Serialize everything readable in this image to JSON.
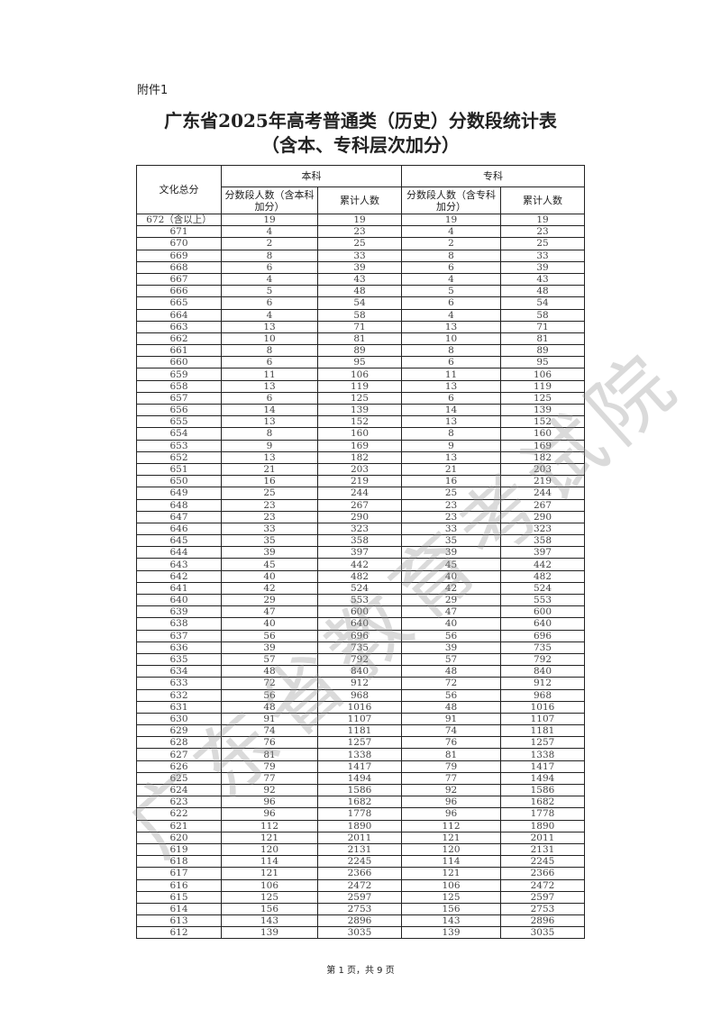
{
  "attachment_label": "附件1",
  "title_line1": "广东省2025年高考普通类（历史）分数段统计表",
  "title_line2": "（含本、专科层次加分）",
  "watermark": "广东省教育考试院",
  "table": {
    "col_score": "文化总分",
    "group_bk": "本科",
    "group_zk": "专科",
    "bk_count": "分数段人数（含本科加分）",
    "bk_cum": "累计人数",
    "zk_count": "分数段人数（含专科加分）",
    "zk_cum": "累计人数",
    "rows": [
      [
        "672（含以上）",
        19,
        19,
        19,
        19
      ],
      [
        "671",
        4,
        23,
        4,
        23
      ],
      [
        "670",
        2,
        25,
        2,
        25
      ],
      [
        "669",
        8,
        33,
        8,
        33
      ],
      [
        "668",
        6,
        39,
        6,
        39
      ],
      [
        "667",
        4,
        43,
        4,
        43
      ],
      [
        "666",
        5,
        48,
        5,
        48
      ],
      [
        "665",
        6,
        54,
        6,
        54
      ],
      [
        "664",
        4,
        58,
        4,
        58
      ],
      [
        "663",
        13,
        71,
        13,
        71
      ],
      [
        "662",
        10,
        81,
        10,
        81
      ],
      [
        "661",
        8,
        89,
        8,
        89
      ],
      [
        "660",
        6,
        95,
        6,
        95
      ],
      [
        "659",
        11,
        106,
        11,
        106
      ],
      [
        "658",
        13,
        119,
        13,
        119
      ],
      [
        "657",
        6,
        125,
        6,
        125
      ],
      [
        "656",
        14,
        139,
        14,
        139
      ],
      [
        "655",
        13,
        152,
        13,
        152
      ],
      [
        "654",
        8,
        160,
        8,
        160
      ],
      [
        "653",
        9,
        169,
        9,
        169
      ],
      [
        "652",
        13,
        182,
        13,
        182
      ],
      [
        "651",
        21,
        203,
        21,
        203
      ],
      [
        "650",
        16,
        219,
        16,
        219
      ],
      [
        "649",
        25,
        244,
        25,
        244
      ],
      [
        "648",
        23,
        267,
        23,
        267
      ],
      [
        "647",
        23,
        290,
        23,
        290
      ],
      [
        "646",
        33,
        323,
        33,
        323
      ],
      [
        "645",
        35,
        358,
        35,
        358
      ],
      [
        "644",
        39,
        397,
        39,
        397
      ],
      [
        "643",
        45,
        442,
        45,
        442
      ],
      [
        "642",
        40,
        482,
        40,
        482
      ],
      [
        "641",
        42,
        524,
        42,
        524
      ],
      [
        "640",
        29,
        553,
        29,
        553
      ],
      [
        "639",
        47,
        600,
        47,
        600
      ],
      [
        "638",
        40,
        640,
        40,
        640
      ],
      [
        "637",
        56,
        696,
        56,
        696
      ],
      [
        "636",
        39,
        735,
        39,
        735
      ],
      [
        "635",
        57,
        792,
        57,
        792
      ],
      [
        "634",
        48,
        840,
        48,
        840
      ],
      [
        "633",
        72,
        912,
        72,
        912
      ],
      [
        "632",
        56,
        968,
        56,
        968
      ],
      [
        "631",
        48,
        1016,
        48,
        1016
      ],
      [
        "630",
        91,
        1107,
        91,
        1107
      ],
      [
        "629",
        74,
        1181,
        74,
        1181
      ],
      [
        "628",
        76,
        1257,
        76,
        1257
      ],
      [
        "627",
        81,
        1338,
        81,
        1338
      ],
      [
        "626",
        79,
        1417,
        79,
        1417
      ],
      [
        "625",
        77,
        1494,
        77,
        1494
      ],
      [
        "624",
        92,
        1586,
        92,
        1586
      ],
      [
        "623",
        96,
        1682,
        96,
        1682
      ],
      [
        "622",
        96,
        1778,
        96,
        1778
      ],
      [
        "621",
        112,
        1890,
        112,
        1890
      ],
      [
        "620",
        121,
        2011,
        121,
        2011
      ],
      [
        "619",
        120,
        2131,
        120,
        2131
      ],
      [
        "618",
        114,
        2245,
        114,
        2245
      ],
      [
        "617",
        121,
        2366,
        121,
        2366
      ],
      [
        "616",
        106,
        2472,
        106,
        2472
      ],
      [
        "615",
        125,
        2597,
        125,
        2597
      ],
      [
        "614",
        156,
        2753,
        156,
        2753
      ],
      [
        "613",
        143,
        2896,
        143,
        2896
      ],
      [
        "612",
        139,
        3035,
        139,
        3035
      ]
    ]
  },
  "footer": "第 1 页，共 9 页"
}
